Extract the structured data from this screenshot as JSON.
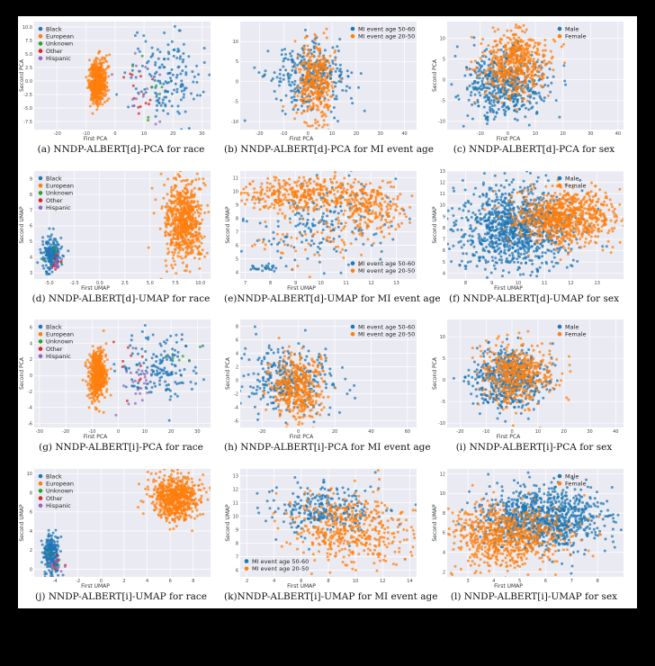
{
  "colors": {
    "blue": "#1f77b4",
    "orange": "#ff7f0e",
    "green": "#2ca02c",
    "red": "#d62728",
    "purple": "#9467bd",
    "plot_bg": "#eaeaf2"
  },
  "chart_data": [
    {
      "type": "scatter",
      "caption": "(a) NNDP-ALBERT[d]-PCA for race",
      "xlabel": "First PCA",
      "ylabel": "Second PCA",
      "xlim": [
        -28,
        33
      ],
      "ylim": [
        -9,
        11
      ],
      "xticks": [
        "-20",
        "-10",
        "0",
        "10",
        "20",
        "30"
      ],
      "xtick_values": [
        -20,
        -10,
        0,
        10,
        20,
        30
      ],
      "yticks": [
        "-7.5",
        "-5.0",
        "-2.5",
        "0.0",
        "2.5",
        "5.0",
        "7.5",
        "10.0"
      ],
      "ytick_values": [
        -7.5,
        -5,
        -2.5,
        0,
        2.5,
        5,
        7.5,
        10
      ],
      "legend_position": "upper-left",
      "series": [
        {
          "name": "Black",
          "color": "#1f77b4",
          "clusters": [
            {
              "cx": 17,
              "cy": 1,
              "sx": 6,
              "sy": 4,
              "n": 160
            }
          ]
        },
        {
          "name": "European",
          "color": "#ff7f0e",
          "clusters": [
            {
              "cx": -6,
              "cy": 0,
              "sx": 1.5,
              "sy": 2,
              "n": 500
            }
          ]
        },
        {
          "name": "Unknown",
          "color": "#2ca02c",
          "clusters": [
            {
              "cx": 12,
              "cy": -2,
              "sx": 4,
              "sy": 3,
              "n": 8
            }
          ]
        },
        {
          "name": "Other",
          "color": "#d62728",
          "clusters": [
            {
              "cx": 8,
              "cy": -3,
              "sx": 3,
              "sy": 3,
              "n": 14
            }
          ]
        },
        {
          "name": "Hispanic",
          "color": "#9467bd",
          "clusters": [
            {
              "cx": 10,
              "cy": -1,
              "sx": 4,
              "sy": 3,
              "n": 14
            }
          ]
        }
      ]
    },
    {
      "type": "scatter",
      "caption": "(b) NNDP-ALBERT[d]-PCA for MI event age",
      "xlabel": "First PCA",
      "ylabel": "",
      "xlim": [
        -28,
        45
      ],
      "ylim": [
        -12,
        15
      ],
      "xticks": [
        "-20",
        "-10",
        "0",
        "10",
        "20",
        "30",
        "40"
      ],
      "xtick_values": [
        -20,
        -10,
        0,
        10,
        20,
        30,
        40
      ],
      "yticks": [
        "-10",
        "-5",
        "0",
        "5",
        "10"
      ],
      "ytick_values": [
        -10,
        -5,
        0,
        5,
        10
      ],
      "legend_position": "upper-right",
      "series": [
        {
          "name": "MI event age 50-60",
          "color": "#1f77b4",
          "clusters": [
            {
              "cx": 0,
              "cy": 1,
              "sx": 8,
              "sy": 4,
              "n": 300
            }
          ]
        },
        {
          "name": "MI event age 20-50",
          "color": "#ff7f0e",
          "clusters": [
            {
              "cx": 3,
              "cy": 0,
              "sx": 4,
              "sy": 5,
              "n": 350
            }
          ]
        }
      ]
    },
    {
      "type": "scatter",
      "caption": "(c) NNDP-ALBERT[d]-PCA for sex",
      "xlabel": "First PCA",
      "ylabel": "Second PCA",
      "xlim": [
        -22,
        42
      ],
      "ylim": [
        -12,
        14
      ],
      "xticks": [
        "-10",
        "0",
        "10",
        "20",
        "30",
        "40"
      ],
      "xtick_values": [
        -10,
        0,
        10,
        20,
        30,
        40
      ],
      "yticks": [
        "-10",
        "-5",
        "0",
        "5",
        "10"
      ],
      "ytick_values": [
        -10,
        -5,
        0,
        5,
        10
      ],
      "legend_position": "upper-right",
      "series": [
        {
          "name": "Male",
          "color": "#1f77b4",
          "clusters": [
            {
              "cx": -1,
              "cy": -1,
              "sx": 7,
              "sy": 4,
              "n": 500
            }
          ]
        },
        {
          "name": "Female",
          "color": "#ff7f0e",
          "clusters": [
            {
              "cx": 3,
              "cy": 4,
              "sx": 6,
              "sy": 4,
              "n": 500
            }
          ]
        }
      ]
    },
    {
      "type": "scatter",
      "caption": "(d) NNDP-ALBERT[d]-UMAP for race",
      "xlabel": "First UMAP",
      "ylabel": "Second UMAP",
      "xlim": [
        -6.5,
        11
      ],
      "ylim": [
        2.6,
        9.5
      ],
      "xticks": [
        "-5.0",
        "-2.5",
        "0.0",
        "2.5",
        "5.0",
        "7.5",
        "10.0"
      ],
      "xtick_values": [
        -5,
        -2.5,
        0,
        2.5,
        5,
        7.5,
        10
      ],
      "yticks": [
        "3",
        "4",
        "5",
        "6",
        "7",
        "8",
        "9"
      ],
      "ytick_values": [
        3,
        4,
        5,
        6,
        7,
        8,
        9
      ],
      "legend_position": "upper-left",
      "series": [
        {
          "name": "Black",
          "color": "#1f77b4",
          "clusters": [
            {
              "cx": -4.8,
              "cy": 4.2,
              "sx": 0.5,
              "sy": 0.55,
              "n": 200
            }
          ]
        },
        {
          "name": "European",
          "color": "#ff7f0e",
          "clusters": [
            {
              "cx": 8.3,
              "cy": 6.3,
              "sx": 1.0,
              "sy": 1.3,
              "n": 650
            }
          ]
        },
        {
          "name": "Unknown",
          "color": "#2ca02c",
          "clusters": [
            {
              "cx": -4.5,
              "cy": 4.0,
              "sx": 0.4,
              "sy": 0.4,
              "n": 6
            }
          ]
        },
        {
          "name": "Other",
          "color": "#d62728",
          "clusters": [
            {
              "cx": -4.2,
              "cy": 3.5,
              "sx": 0.3,
              "sy": 0.3,
              "n": 10
            }
          ]
        },
        {
          "name": "Hispanic",
          "color": "#9467bd",
          "clusters": [
            {
              "cx": -4.2,
              "cy": 3.5,
              "sx": 0.3,
              "sy": 0.3,
              "n": 12
            }
          ]
        }
      ]
    },
    {
      "type": "scatter",
      "caption": "(e)NNDP-ALBERT[d]-UMAP for MI event age",
      "xlabel": "First UMAP",
      "ylabel": "Second UMAP",
      "xlim": [
        6.8,
        13.8
      ],
      "ylim": [
        3.5,
        11.5
      ],
      "xticks": [
        "7",
        "8",
        "9",
        "10",
        "11",
        "12",
        "13"
      ],
      "xtick_values": [
        7,
        8,
        9,
        10,
        11,
        12,
        13
      ],
      "yticks": [
        "4",
        "5",
        "6",
        "7",
        "8",
        "9",
        "10",
        "11"
      ],
      "ytick_values": [
        4,
        5,
        6,
        7,
        8,
        9,
        10,
        11
      ],
      "legend_position": "lower-right",
      "series": [
        {
          "name": "MI event age 50-60",
          "color": "#1f77b4",
          "clusters": [
            {
              "cx": 10,
              "cy": 7.5,
              "sx": 1.4,
              "sy": 1.6,
              "n": 180
            },
            {
              "cx": 7.7,
              "cy": 4.3,
              "sx": 0.3,
              "sy": 0.15,
              "n": 25
            }
          ]
        },
        {
          "name": "MI event age 20-50",
          "color": "#ff7f0e",
          "clusters": [
            {
              "cx": 9.5,
              "cy": 9.8,
              "sx": 1.3,
              "sy": 0.6,
              "n": 400
            },
            {
              "cx": 12,
              "cy": 8.5,
              "sx": 0.7,
              "sy": 1.0,
              "n": 180
            },
            {
              "cx": 10,
              "cy": 6.5,
              "sx": 1.2,
              "sy": 1.2,
              "n": 70
            }
          ]
        }
      ]
    },
    {
      "type": "scatter",
      "caption": "(f) NNDP-ALBERT[d]-UMAP for sex",
      "xlabel": "First UMAP",
      "ylabel": "Second UMAP",
      "xlim": [
        7.3,
        14
      ],
      "ylim": [
        3.5,
        13
      ],
      "xticks": [
        "8",
        "9",
        "10",
        "11",
        "12",
        "13"
      ],
      "xtick_values": [
        8,
        9,
        10,
        11,
        12,
        13
      ],
      "yticks": [
        "4",
        "5",
        "6",
        "7",
        "8",
        "9",
        "10",
        "11",
        "12",
        "13"
      ],
      "ytick_values": [
        4,
        5,
        6,
        7,
        8,
        9,
        10,
        11,
        12,
        13
      ],
      "legend_position": "upper-right",
      "series": [
        {
          "name": "Male",
          "color": "#1f77b4",
          "clusters": [
            {
              "cx": 9.8,
              "cy": 8,
              "sx": 1.1,
              "sy": 1.8,
              "n": 1000
            }
          ]
        },
        {
          "name": "Female",
          "color": "#ff7f0e",
          "clusters": [
            {
              "cx": 11.8,
              "cy": 9,
              "sx": 1.0,
              "sy": 1.2,
              "n": 800
            }
          ]
        }
      ]
    },
    {
      "type": "scatter",
      "caption": "(g) NNDP-ALBERT[i]-PCA for race",
      "xlabel": "First PCA",
      "ylabel": "Second PCA",
      "xlim": [
        -32,
        35
      ],
      "ylim": [
        -6.5,
        7
      ],
      "xticks": [
        "-30",
        "-20",
        "-10",
        "0",
        "10",
        "20",
        "30"
      ],
      "xtick_values": [
        -30,
        -20,
        -10,
        0,
        10,
        20,
        30
      ],
      "yticks": [
        "-6",
        "-4",
        "-2",
        "0",
        "2",
        "4",
        "6"
      ],
      "ytick_values": [
        -6,
        -4,
        -2,
        0,
        2,
        4,
        6
      ],
      "legend_position": "upper-left",
      "series": [
        {
          "name": "Black",
          "color": "#1f77b4",
          "clusters": [
            {
              "cx": 16,
              "cy": 1,
              "sx": 7,
              "sy": 2.2,
              "n": 160
            }
          ]
        },
        {
          "name": "European",
          "color": "#ff7f0e",
          "clusters": [
            {
              "cx": -8,
              "cy": 0,
              "sx": 1.6,
              "sy": 1.5,
              "n": 500
            }
          ]
        },
        {
          "name": "Unknown",
          "color": "#2ca02c",
          "clusters": [
            {
              "cx": 20,
              "cy": 3,
              "sx": 5,
              "sy": 2,
              "n": 6
            }
          ]
        },
        {
          "name": "Other",
          "color": "#d62728",
          "clusters": [
            {
              "cx": 5,
              "cy": 0,
              "sx": 3,
              "sy": 2,
              "n": 10
            }
          ]
        },
        {
          "name": "Hispanic",
          "color": "#9467bd",
          "clusters": [
            {
              "cx": 7,
              "cy": -1,
              "sx": 4,
              "sy": 2,
              "n": 25
            }
          ]
        }
      ]
    },
    {
      "type": "scatter",
      "caption": "(h) NNDP-ALBERT[i]-PCA for MI event age",
      "xlabel": "First PCA",
      "ylabel": "Second PCA",
      "xlim": [
        -32,
        65
      ],
      "ylim": [
        -7,
        9
      ],
      "xticks": [
        "-20",
        "0",
        "20",
        "40",
        "60"
      ],
      "xtick_values": [
        -20,
        0,
        20,
        40,
        60
      ],
      "yticks": [
        "-6",
        "-4",
        "-2",
        "0",
        "2",
        "4",
        "6",
        "8"
      ],
      "ytick_values": [
        -6,
        -4,
        -2,
        0,
        2,
        4,
        6,
        8
      ],
      "legend_position": "upper-right",
      "series": [
        {
          "name": "MI event age 50-60",
          "color": "#1f77b4",
          "clusters": [
            {
              "cx": -5,
              "cy": 0,
              "sx": 12,
              "sy": 2.5,
              "n": 300
            }
          ]
        },
        {
          "name": "MI event age 20-50",
          "color": "#ff7f0e",
          "clusters": [
            {
              "cx": 0,
              "cy": -1,
              "sx": 7,
              "sy": 2.5,
              "n": 400
            }
          ]
        }
      ]
    },
    {
      "type": "scatter",
      "caption": "(i) NNDP-ALBERT[i]-PCA for sex",
      "xlabel": "First PCA",
      "ylabel": "Second PCA",
      "xlim": [
        -25,
        43
      ],
      "ylim": [
        -11,
        14
      ],
      "xticks": [
        "-20",
        "-10",
        "0",
        "10",
        "20",
        "30",
        "40"
      ],
      "xtick_values": [
        -20,
        -10,
        0,
        10,
        20,
        30,
        40
      ],
      "yticks": [
        "-10",
        "-5",
        "0",
        "5",
        "10"
      ],
      "ytick_values": [
        -10,
        -5,
        0,
        5,
        10
      ],
      "legend_position": "upper-right",
      "series": [
        {
          "name": "Male",
          "color": "#1f77b4",
          "clusters": [
            {
              "cx": -1,
              "cy": 0,
              "sx": 7,
              "sy": 3.5,
              "n": 500
            }
          ]
        },
        {
          "name": "Female",
          "color": "#ff7f0e",
          "clusters": [
            {
              "cx": 1,
              "cy": 1,
              "sx": 7,
              "sy": 3.5,
              "n": 450
            }
          ]
        }
      ]
    },
    {
      "type": "scatter",
      "caption": "(j) NNDP-ALBERT[i]-UMAP for race",
      "xlabel": "First UMAP",
      "ylabel": "Second UMAP",
      "xlim": [
        -5.8,
        9.5
      ],
      "ylim": [
        -0.8,
        10.5
      ],
      "xticks": [
        "-4",
        "-2",
        "0",
        "2",
        "4",
        "6",
        "8"
      ],
      "xtick_values": [
        -4,
        -2,
        0,
        2,
        4,
        6,
        8
      ],
      "yticks": [
        "0",
        "2",
        "4",
        "6",
        "8",
        "10"
      ],
      "ytick_values": [
        0,
        2,
        4,
        6,
        8,
        10
      ],
      "legend_position": "upper-left",
      "series": [
        {
          "name": "Black",
          "color": "#1f77b4",
          "clusters": [
            {
              "cx": -4.3,
              "cy": 1.5,
              "sx": 0.35,
              "sy": 1.0,
              "n": 220
            }
          ]
        },
        {
          "name": "European",
          "color": "#ff7f0e",
          "clusters": [
            {
              "cx": 6.5,
              "cy": 7.5,
              "sx": 1.0,
              "sy": 1.1,
              "n": 650
            }
          ]
        },
        {
          "name": "Unknown",
          "color": "#2ca02c",
          "clusters": [
            {
              "cx": -4.0,
              "cy": 1.0,
              "sx": 0.3,
              "sy": 0.6,
              "n": 6
            }
          ]
        },
        {
          "name": "Other",
          "color": "#d62728",
          "clusters": [
            {
              "cx": -4.0,
              "cy": 0.5,
              "sx": 0.3,
              "sy": 0.5,
              "n": 6
            }
          ]
        },
        {
          "name": "Hispanic",
          "color": "#9467bd",
          "clusters": [
            {
              "cx": -3.8,
              "cy": 0.5,
              "sx": 0.3,
              "sy": 0.5,
              "n": 12
            }
          ]
        }
      ]
    },
    {
      "type": "scatter",
      "caption": "(k)NNDP-ALBERT[i]-UMAP for MI event age",
      "xlabel": "First UMAP",
      "ylabel": "Second UMAP",
      "xlim": [
        1.5,
        14.5
      ],
      "ylim": [
        5.5,
        13.5
      ],
      "xticks": [
        "2",
        "4",
        "6",
        "8",
        "10",
        "12",
        "14"
      ],
      "xtick_values": [
        2,
        4,
        6,
        8,
        10,
        12,
        14
      ],
      "yticks": [
        "6",
        "7",
        "8",
        "9",
        "10",
        "11",
        "12",
        "13"
      ],
      "ytick_values": [
        6,
        7,
        8,
        9,
        10,
        11,
        12,
        13
      ],
      "legend_position": "lower-left",
      "series": [
        {
          "name": "MI event age 50-60",
          "color": "#1f77b4",
          "clusters": [
            {
              "cx": 7.5,
              "cy": 10.5,
              "sx": 2.0,
              "sy": 0.9,
              "n": 260
            }
          ]
        },
        {
          "name": "MI event age 20-50",
          "color": "#ff7f0e",
          "clusters": [
            {
              "cx": 9.5,
              "cy": 9.0,
              "sx": 2.2,
              "sy": 1.3,
              "n": 450
            }
          ]
        }
      ]
    },
    {
      "type": "scatter",
      "caption": "(l) NNDP-ALBERT[i]-UMAP for sex",
      "xlabel": "First UMAP",
      "ylabel": "Second UMAP",
      "xlim": [
        2.2,
        9
      ],
      "ylim": [
        1.5,
        12.5
      ],
      "xticks": [
        "3",
        "4",
        "5",
        "6",
        "7",
        "8"
      ],
      "xtick_values": [
        3,
        4,
        5,
        6,
        7,
        8
      ],
      "yticks": [
        "2",
        "4",
        "6",
        "8",
        "10",
        "12"
      ],
      "ytick_values": [
        2,
        4,
        6,
        8,
        10,
        12
      ],
      "legend_position": "upper-right",
      "series": [
        {
          "name": "Male",
          "color": "#1f77b4",
          "clusters": [
            {
              "cx": 6.0,
              "cy": 7.5,
              "sx": 1.2,
              "sy": 1.6,
              "n": 900
            }
          ]
        },
        {
          "name": "Female",
          "color": "#ff7f0e",
          "clusters": [
            {
              "cx": 4.5,
              "cy": 5.5,
              "sx": 1.1,
              "sy": 1.6,
              "n": 700
            }
          ]
        }
      ]
    }
  ]
}
